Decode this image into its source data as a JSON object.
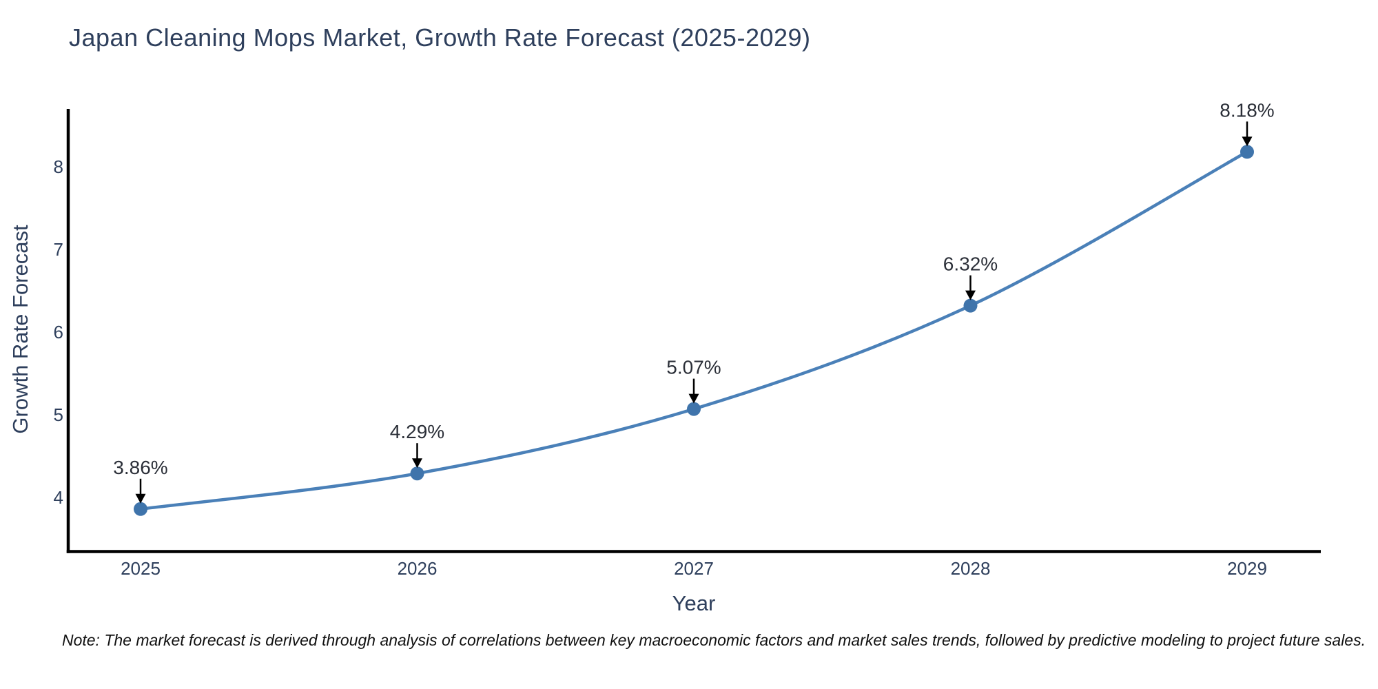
{
  "title": "Japan Cleaning Mops Market, Growth Rate Forecast (2025-2029)",
  "x_axis": {
    "label": "Year",
    "ticks": [
      "2025",
      "2026",
      "2027",
      "2028",
      "2029"
    ]
  },
  "y_axis": {
    "label": "Growth Rate Forecast",
    "ticks": [
      "4",
      "5",
      "6",
      "7",
      "8"
    ]
  },
  "note": "Note: The market forecast is derived through analysis of correlations between key macroeconomic factors and market sales trends, followed by predictive modeling to project future sales.",
  "colors": {
    "background": "#ffffff",
    "line": "#4a80b8",
    "marker": "#3f74ab",
    "axis": "#000000",
    "text": "#2e3f5c",
    "annotation_text": "#2b2f38",
    "arrow": "#000000",
    "note_text": "#111111"
  },
  "chart_data": {
    "type": "line",
    "title": "Japan Cleaning Mops Market, Growth Rate Forecast (2025-2029)",
    "xlabel": "Year",
    "ylabel": "Growth Rate Forecast",
    "x": [
      2025,
      2026,
      2027,
      2028,
      2029
    ],
    "series": [
      {
        "name": "Growth Rate Forecast",
        "values": [
          3.86,
          4.29,
          5.07,
          6.32,
          8.18
        ]
      }
    ],
    "point_labels": [
      "3.86%",
      "4.29%",
      "5.07%",
      "6.32%",
      "8.18%"
    ],
    "yticks": [
      4,
      5,
      6,
      7,
      8
    ],
    "ylim": [
      3.35,
      8.7
    ],
    "line_shape": "spline",
    "markers": true,
    "annotations": "value labels with downward arrows above each data point",
    "grid": false,
    "legend": "none"
  }
}
